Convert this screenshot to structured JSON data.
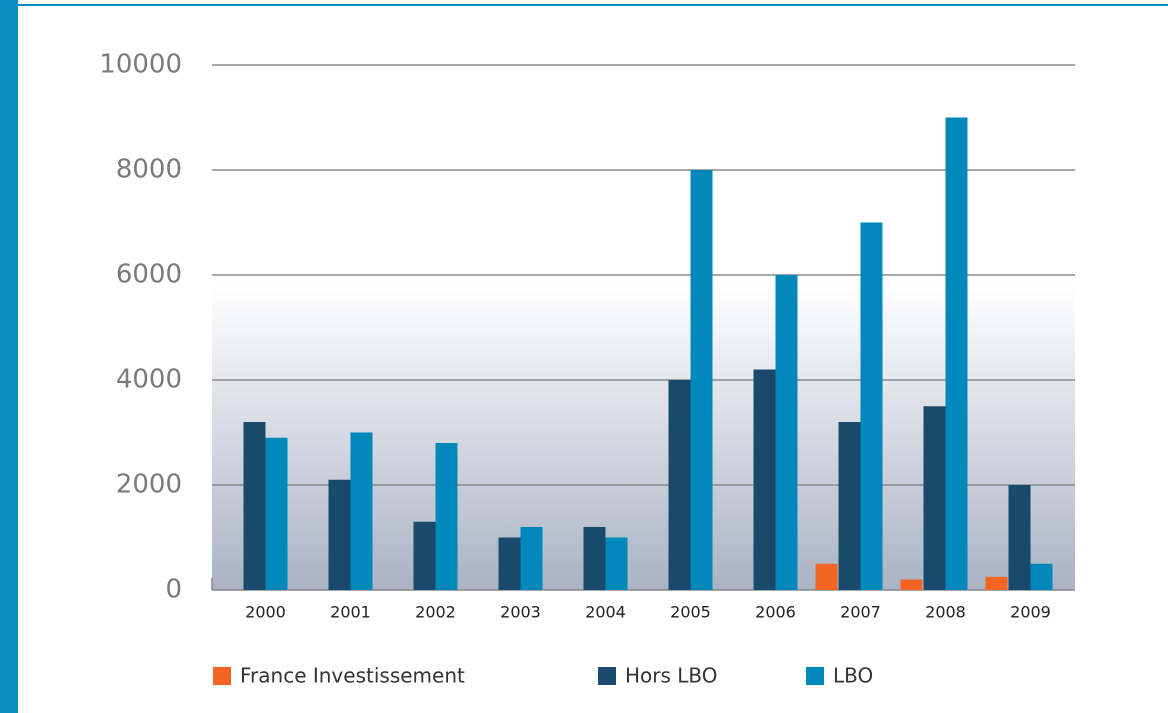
{
  "chart_data": {
    "type": "bar",
    "categories": [
      "2000",
      "2001",
      "2002",
      "2003",
      "2004",
      "2005",
      "2006",
      "2007",
      "2008",
      "2009"
    ],
    "series": [
      {
        "name": "France Investissement",
        "color": "#f26522",
        "values": [
          null,
          null,
          null,
          null,
          null,
          null,
          null,
          500,
          200,
          250
        ]
      },
      {
        "name": "Hors LBO",
        "color": "#1a4a6b",
        "values": [
          3200,
          2100,
          1300,
          1000,
          1200,
          4000,
          4200,
          3200,
          3500,
          2000
        ]
      },
      {
        "name": "LBO",
        "color": "#0088bb",
        "values": [
          2900,
          3000,
          2800,
          1200,
          1000,
          8000,
          6000,
          7000,
          9000,
          500
        ]
      }
    ],
    "ylim": [
      0,
      10000
    ],
    "yticks": [
      0,
      2000,
      4000,
      6000,
      8000,
      10000
    ],
    "grid": true
  }
}
